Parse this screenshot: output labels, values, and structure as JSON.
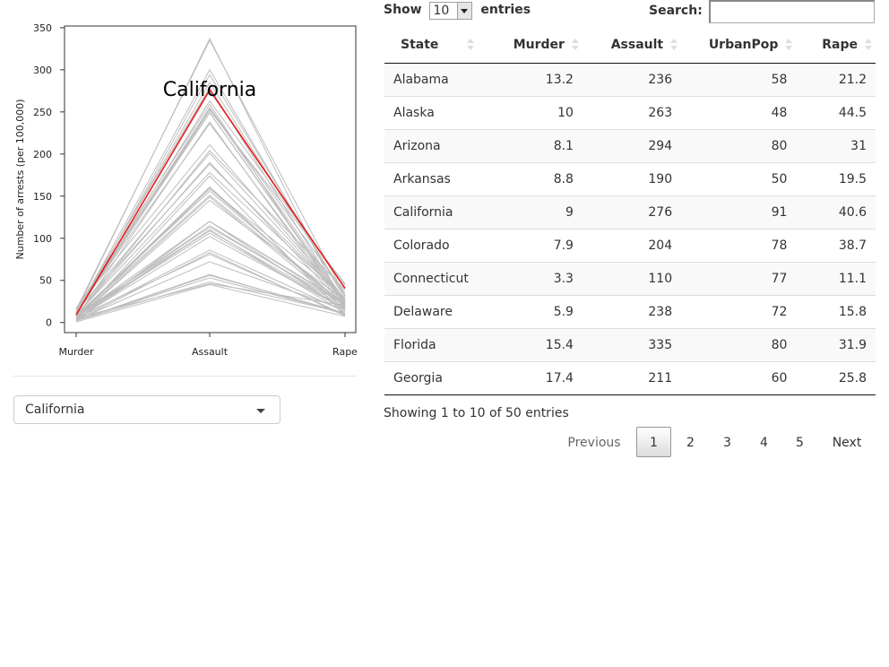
{
  "chart_data": {
    "type": "line",
    "categories": [
      "Murder",
      "Assault",
      "Rape"
    ],
    "ylabel": "Number of arrests (per 100,000)",
    "xlabel": "",
    "ylim": [
      -12,
      352
    ],
    "yticks": [
      0,
      50,
      100,
      150,
      200,
      250,
      300,
      350
    ],
    "highlight_label": "California",
    "highlight_color": "#e41a1c",
    "background_line_color": "#bdbdbd",
    "highlight": {
      "name": "California",
      "values": [
        9,
        276,
        40.6
      ]
    },
    "background_series": [
      [
        13.2,
        236,
        21.2
      ],
      [
        10,
        263,
        44.5
      ],
      [
        8.1,
        294,
        31
      ],
      [
        8.8,
        190,
        19.5
      ],
      [
        7.9,
        204,
        38.7
      ],
      [
        3.3,
        110,
        11.1
      ],
      [
        5.9,
        238,
        15.8
      ],
      [
        15.4,
        335,
        31.9
      ],
      [
        17.4,
        211,
        25.8
      ],
      [
        5.3,
        46,
        20.2
      ],
      [
        2.6,
        120,
        14.2
      ],
      [
        10.4,
        249,
        24
      ],
      [
        7.2,
        113,
        21
      ],
      [
        2.2,
        56,
        11.3
      ],
      [
        6,
        115,
        18
      ],
      [
        9.7,
        109,
        16.3
      ],
      [
        15.4,
        249,
        22.2
      ],
      [
        2.1,
        83,
        7.8
      ],
      [
        11.3,
        300,
        27.8
      ],
      [
        4.4,
        149,
        16.3
      ],
      [
        12.1,
        255,
        35.1
      ],
      [
        2.7,
        72,
        14.9
      ],
      [
        16.1,
        259,
        17.1
      ],
      [
        9,
        178,
        28.2
      ],
      [
        6,
        109,
        16.4
      ],
      [
        4.3,
        102,
        16.5
      ],
      [
        12.2,
        252,
        46
      ],
      [
        2.1,
        57,
        9.5
      ],
      [
        7.4,
        159,
        18.8
      ],
      [
        11.4,
        285,
        32.1
      ],
      [
        11.1,
        254,
        26.1
      ],
      [
        13,
        337,
        16.1
      ],
      [
        0.8,
        45,
        7.3
      ],
      [
        7.3,
        120,
        21.4
      ],
      [
        6.6,
        151,
        20
      ],
      [
        4.9,
        159,
        29.3
      ],
      [
        6.3,
        106,
        14.9
      ],
      [
        3.4,
        174,
        8.3
      ],
      [
        14.4,
        279,
        22.5
      ],
      [
        3.8,
        86,
        12.8
      ],
      [
        13.2,
        188,
        26.9
      ],
      [
        12.7,
        201,
        25.5
      ],
      [
        3.2,
        120,
        22.9
      ],
      [
        2.2,
        48,
        11.2
      ],
      [
        8.5,
        156,
        20.7
      ],
      [
        4,
        145,
        26.2
      ],
      [
        5.7,
        81,
        9.3
      ],
      [
        2.6,
        53,
        10.8
      ],
      [
        6.8,
        161,
        15.6
      ]
    ]
  },
  "state_select": {
    "value": "California"
  },
  "length_control": {
    "show_label": "Show",
    "value": "10",
    "entries_label": "entries"
  },
  "search": {
    "label": "Search:",
    "value": ""
  },
  "table": {
    "columns": [
      "State",
      "Murder",
      "Assault",
      "UrbanPop",
      "Rape"
    ],
    "rows": [
      [
        "Alabama",
        "13.2",
        "236",
        "58",
        "21.2"
      ],
      [
        "Alaska",
        "10",
        "263",
        "48",
        "44.5"
      ],
      [
        "Arizona",
        "8.1",
        "294",
        "80",
        "31"
      ],
      [
        "Arkansas",
        "8.8",
        "190",
        "50",
        "19.5"
      ],
      [
        "California",
        "9",
        "276",
        "91",
        "40.6"
      ],
      [
        "Colorado",
        "7.9",
        "204",
        "78",
        "38.7"
      ],
      [
        "Connecticut",
        "3.3",
        "110",
        "77",
        "11.1"
      ],
      [
        "Delaware",
        "5.9",
        "238",
        "72",
        "15.8"
      ],
      [
        "Florida",
        "15.4",
        "335",
        "80",
        "31.9"
      ],
      [
        "Georgia",
        "17.4",
        "211",
        "60",
        "25.8"
      ]
    ]
  },
  "table_info": "Showing 1 to 10 of 50 entries",
  "pagination": {
    "previous": "Previous",
    "pages": [
      "1",
      "2",
      "3",
      "4",
      "5"
    ],
    "current": "1",
    "next": "Next"
  }
}
